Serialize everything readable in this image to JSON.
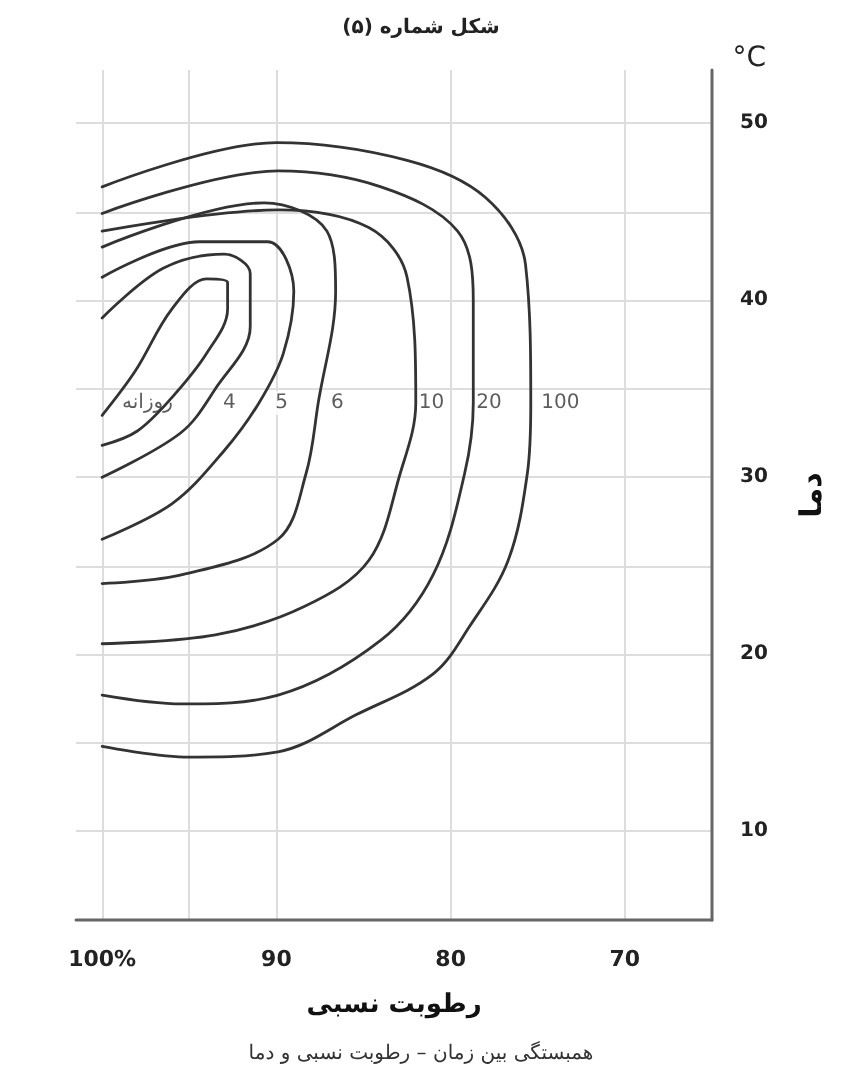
{
  "chart_data": {
    "type": "line",
    "title": "شکل شماره (۵)",
    "xlabel": "رطوبت نسبی",
    "ylabel": "دما",
    "annotations": [
      "°C",
      "همبستگی بین زمان – رطوبت نسبی و دما",
      {
        "text": "روزانه",
        "x": 97.4,
        "y": 34.2
      },
      {
        "text": "4",
        "x": 92.7,
        "y": 34.2
      },
      {
        "text": "5",
        "x": 89.7,
        "y": 34.2
      },
      {
        "text": "6",
        "x": 86.5,
        "y": 34.2
      },
      {
        "text": "10",
        "x": 81.1,
        "y": 34.2
      },
      {
        "text": "20",
        "x": 77.8,
        "y": 34.2
      },
      {
        "text": "100",
        "x": 73.7,
        "y": 34.2
      }
    ],
    "xlim": [
      101.5,
      65
    ],
    "xticks": [
      {
        "value": 100,
        "label": "100%"
      },
      {
        "value": 95,
        "label": null
      },
      90,
      80,
      70
    ],
    "ylim": [
      5,
      53
    ],
    "yticks": [
      10,
      {
        "value": 15,
        "label": null
      },
      20,
      {
        "value": 25,
        "label": null
      },
      30,
      {
        "value": 35,
        "label": null
      },
      40,
      {
        "value": 45,
        "label": null
      },
      50
    ],
    "grid": true,
    "marker": "none",
    "line_style": "solid",
    "series": [
      {
        "color": "#333333",
        "x": [
          100,
          98.1,
          96,
          94,
          92.8,
          92.8,
          94,
          96,
          98,
          100
        ],
        "values": [
          33.5,
          36,
          39.5,
          41.2,
          41,
          39.5,
          37,
          34.5,
          32.6,
          31.8
        ]
      },
      {
        "color": "#333333",
        "x": [
          100,
          96.5,
          93,
          91.5,
          91.5,
          93.5,
          95.5,
          100
        ],
        "values": [
          39,
          41.8,
          42.6,
          41.5,
          38.5,
          35,
          32.5,
          30
        ]
      },
      {
        "color": "#333333",
        "x": [
          100,
          94.4,
          90.5,
          89,
          89.6,
          91,
          93,
          96,
          100
        ],
        "values": [
          41.3,
          43.3,
          43.3,
          40.5,
          37,
          34.2,
          31.5,
          28.5,
          26.5
        ]
      },
      {
        "color": "#333333",
        "x": [
          100,
          90.7,
          87.1,
          86.6,
          87.6,
          88.3,
          89.9,
          95.4,
          100
        ],
        "values": [
          43,
          45.5,
          43.9,
          40.5,
          34.2,
          30.2,
          26.5,
          24.5,
          24
        ]
      },
      {
        "color": "#333333",
        "x": [
          100,
          89.9,
          84.7,
          82.5,
          82,
          82.9,
          84.7,
          88.4,
          93.5,
          100
        ],
        "values": [
          43.9,
          45.1,
          44.1,
          41.3,
          34.2,
          30.2,
          25.3,
          22.7,
          21.1,
          20.6
        ]
      },
      {
        "color": "#333333",
        "x": [
          100,
          89.9,
          84,
          79.6,
          78.7,
          78.7,
          79.2,
          81,
          84,
          89.9,
          95.4,
          100
        ],
        "values": [
          44.9,
          47.3,
          46.4,
          43.9,
          40,
          34.2,
          30.2,
          24.5,
          20.8,
          17.7,
          17.2,
          17.7
        ]
      },
      {
        "color": "#333333",
        "x": [
          100,
          90,
          82.5,
          78,
          75.7,
          75.4,
          75.6,
          76.7,
          78.9,
          81,
          85.4,
          89.9,
          95,
          100
        ],
        "values": [
          46.4,
          48.9,
          47.9,
          45.8,
          42,
          34.2,
          30.2,
          25.3,
          21.6,
          18.9,
          16.6,
          14.5,
          14.2,
          14.8
        ]
      }
    ]
  }
}
